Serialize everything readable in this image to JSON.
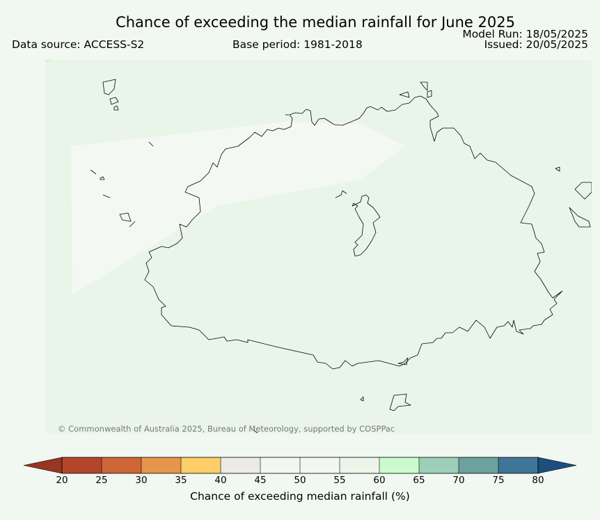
{
  "header": {
    "title": "Chance of exceeding the median rainfall for June 2025",
    "data_source": "Data source: ACCESS-S2",
    "base_period": "Base period: 1981-2018",
    "model_run": "Model Run: 18/05/2025",
    "issued": "Issued: 20/05/2025"
  },
  "map": {
    "copyright": "© Commonwealth of Australia 2025, Bureau of Meteorology, supported by COSPPac"
  },
  "legend": {
    "label": "Chance of exceeding median rainfall (%)",
    "ticks": [
      "20",
      "25",
      "30",
      "35",
      "40",
      "45",
      "50",
      "55",
      "60",
      "65",
      "70",
      "75",
      "80"
    ],
    "colors": [
      "#b5452a",
      "#cf6637",
      "#e6964c",
      "#fece68",
      "#ebeae6",
      "#f3f7f3",
      "#f3f7f3",
      "#ebf5ea",
      "#cbfbcc",
      "#9ccfb7",
      "#6ba19f",
      "#3f7598"
    ],
    "under_color": "#983523",
    "over_color": "#1c4e80"
  },
  "colors": {
    "background": "#f1f8f1",
    "map_base": "#eaf5ea",
    "probability_50_55": "#f3f8f2"
  }
}
